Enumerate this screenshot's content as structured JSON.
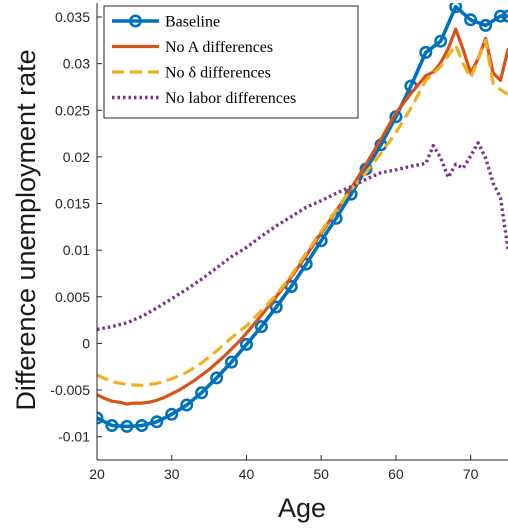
{
  "chart_data": {
    "type": "line",
    "title": "",
    "xlabel": "Age",
    "ylabel": "Difference unemployment rate",
    "xlim": [
      20,
      75
    ],
    "ylim": [
      -0.0125,
      0.0365
    ],
    "xticks": [
      20,
      30,
      40,
      50,
      60,
      70
    ],
    "yticks": [
      -0.01,
      -0.005,
      0,
      0.005,
      0.01,
      0.015,
      0.02,
      0.025,
      0.03,
      0.035
    ],
    "xtick_labels": [
      "20",
      "30",
      "40",
      "50",
      "60",
      "70"
    ],
    "ytick_labels": [
      "-0.01",
      "-0.005",
      "0",
      "0.005",
      "0.01",
      "0.015",
      "0.02",
      "0.025",
      "0.03",
      "0.035"
    ],
    "grid": false,
    "legend_position": "top-left",
    "series": [
      {
        "name": "Baseline",
        "color": "#0072BD",
        "style": "solid-circle-markers",
        "x": [
          20,
          22,
          24,
          26,
          28,
          30,
          32,
          34,
          36,
          38,
          40,
          42,
          44,
          46,
          48,
          50,
          52,
          54,
          56,
          58,
          60,
          62,
          64,
          66,
          68,
          70,
          72,
          74,
          75
        ],
        "y": [
          -0.008,
          -0.0088,
          -0.0089,
          -0.0088,
          -0.0084,
          -0.0076,
          -0.0066,
          -0.0053,
          -0.0037,
          -0.002,
          -0.0001,
          0.0018,
          0.0039,
          0.0061,
          0.0085,
          0.011,
          0.0134,
          0.016,
          0.0187,
          0.0213,
          0.0243,
          0.0276,
          0.0312,
          0.0324,
          0.0361,
          0.0347,
          0.0341,
          0.0351,
          0.0351
        ]
      },
      {
        "name": "No A differences",
        "color": "#D95319",
        "style": "solid",
        "x": [
          20,
          21,
          22,
          23,
          24,
          25,
          26,
          27,
          28,
          29,
          30,
          31,
          32,
          33,
          34,
          35,
          36,
          37,
          38,
          39,
          40,
          42,
          44,
          46,
          48,
          50,
          52,
          54,
          56,
          58,
          60,
          62,
          64,
          65,
          66,
          67,
          68,
          69,
          70,
          71,
          72,
          73,
          74,
          75
        ],
        "y": [
          -0.0055,
          -0.0059,
          -0.0062,
          -0.0063,
          -0.0065,
          -0.0064,
          -0.0064,
          -0.0063,
          -0.0061,
          -0.0058,
          -0.0054,
          -0.005,
          -0.0045,
          -0.004,
          -0.0034,
          -0.0028,
          -0.0021,
          -0.0014,
          -0.0006,
          0.0002,
          0.0011,
          0.003,
          0.005,
          0.0071,
          0.0094,
          0.0118,
          0.0142,
          0.0166,
          0.0192,
          0.0219,
          0.0247,
          0.0268,
          0.0287,
          0.0291,
          0.0301,
          0.0316,
          0.0337,
          0.0315,
          0.029,
          0.0305,
          0.0327,
          0.029,
          0.0282,
          0.0315
        ]
      },
      {
        "name": "No δ differences",
        "color": "#EDB120",
        "style": "dashed",
        "x": [
          20,
          22,
          24,
          26,
          28,
          30,
          32,
          34,
          36,
          38,
          40,
          42,
          44,
          46,
          48,
          50,
          52,
          54,
          56,
          58,
          60,
          62,
          64,
          66,
          68,
          69,
          70,
          71,
          72,
          73,
          74,
          75
        ],
        "y": [
          -0.0034,
          -0.0041,
          -0.0044,
          -0.0045,
          -0.0043,
          -0.0038,
          -0.0031,
          -0.0021,
          -0.0008,
          0.0006,
          0.0019,
          0.0035,
          0.0052,
          0.0073,
          0.0097,
          0.012,
          0.0143,
          0.0165,
          0.0183,
          0.0204,
          0.0226,
          0.0252,
          0.0282,
          0.0297,
          0.032,
          0.03,
          0.0285,
          0.0304,
          0.0325,
          0.0279,
          0.0272,
          0.0267
        ]
      },
      {
        "name": "No labor differences",
        "color": "#7E2F8E",
        "style": "dotted",
        "x": [
          20,
          22,
          24,
          26,
          28,
          30,
          32,
          34,
          36,
          38,
          40,
          42,
          44,
          46,
          48,
          50,
          52,
          54,
          56,
          58,
          60,
          62,
          64,
          65,
          66,
          67,
          68,
          69,
          70,
          71,
          72,
          73,
          74,
          75
        ],
        "y": [
          0.0015,
          0.0018,
          0.0022,
          0.0029,
          0.0038,
          0.0048,
          0.0058,
          0.0069,
          0.0081,
          0.0093,
          0.0103,
          0.0115,
          0.0126,
          0.0136,
          0.0146,
          0.0153,
          0.0161,
          0.0168,
          0.0176,
          0.0183,
          0.0186,
          0.019,
          0.0193,
          0.0212,
          0.0199,
          0.0178,
          0.0192,
          0.0188,
          0.0201,
          0.0215,
          0.0199,
          0.0172,
          0.0156,
          0.0101
        ]
      }
    ]
  }
}
